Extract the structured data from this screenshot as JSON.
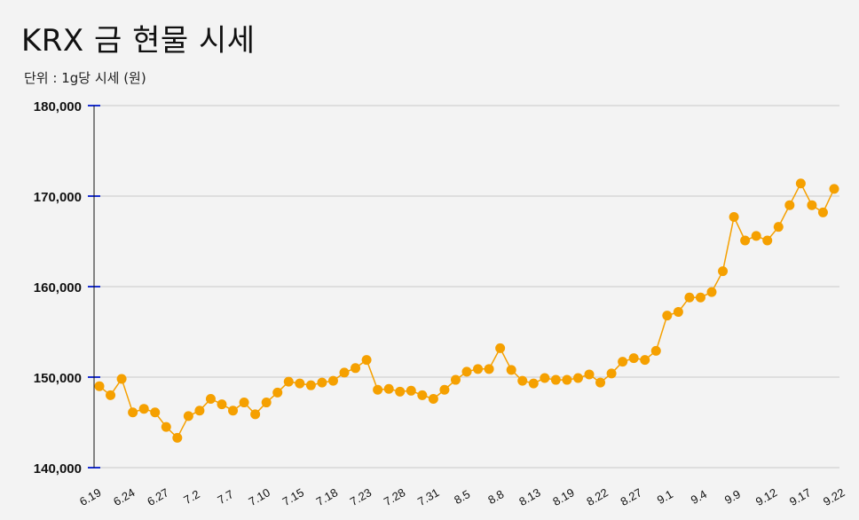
{
  "title": "KRX 금 현물 시세",
  "subtitle": "단위 : 1g당 시세 (원)",
  "colors": {
    "line": "#f5a000",
    "axis": "#1a2fd0",
    "grid": "#c8c8c8",
    "background": "#f3f3f3"
  },
  "chart_data": {
    "type": "line",
    "title": "KRX 금 현물 시세",
    "subtitle": "단위 : 1g당 시세 (원)",
    "ylim": [
      140000,
      180000
    ],
    "yticks": [
      140000,
      150000,
      160000,
      170000,
      180000
    ],
    "ytick_labels": [
      "140,000",
      "150,000",
      "160,000",
      "170,000",
      "180,000"
    ],
    "xtick_labels": [
      "6.19",
      "6.24",
      "6.27",
      "7.2",
      "7.7",
      "7.10",
      "7.15",
      "7.18",
      "7.23",
      "7.28",
      "7.31",
      "8.5",
      "8.8",
      "8.13",
      "8.19",
      "8.22",
      "8.27",
      "9.1",
      "9.4",
      "9.9",
      "9.12",
      "9.17",
      "9.22"
    ],
    "grid": true,
    "series": [
      {
        "values": [
          149000,
          148000,
          149800,
          146100,
          146500,
          146100,
          144500,
          143300,
          145700,
          146300,
          147600,
          147000,
          146300,
          147200,
          145900,
          147200,
          148300,
          149500,
          149300,
          149100,
          149400,
          149600,
          150500,
          151000,
          151900,
          148600,
          148700,
          148400,
          148500,
          148000,
          147600,
          148600,
          149700,
          150600,
          150900,
          150900,
          153200,
          150800,
          149600,
          149300,
          149900,
          149700,
          149700,
          149900,
          150300,
          149400,
          150400,
          151700,
          152100,
          151900,
          152900,
          156800,
          157200,
          158800,
          158800,
          159400,
          161700,
          167700,
          165100,
          165600,
          165100,
          166600,
          169000,
          171400,
          169000,
          168200,
          170800
        ]
      }
    ]
  }
}
